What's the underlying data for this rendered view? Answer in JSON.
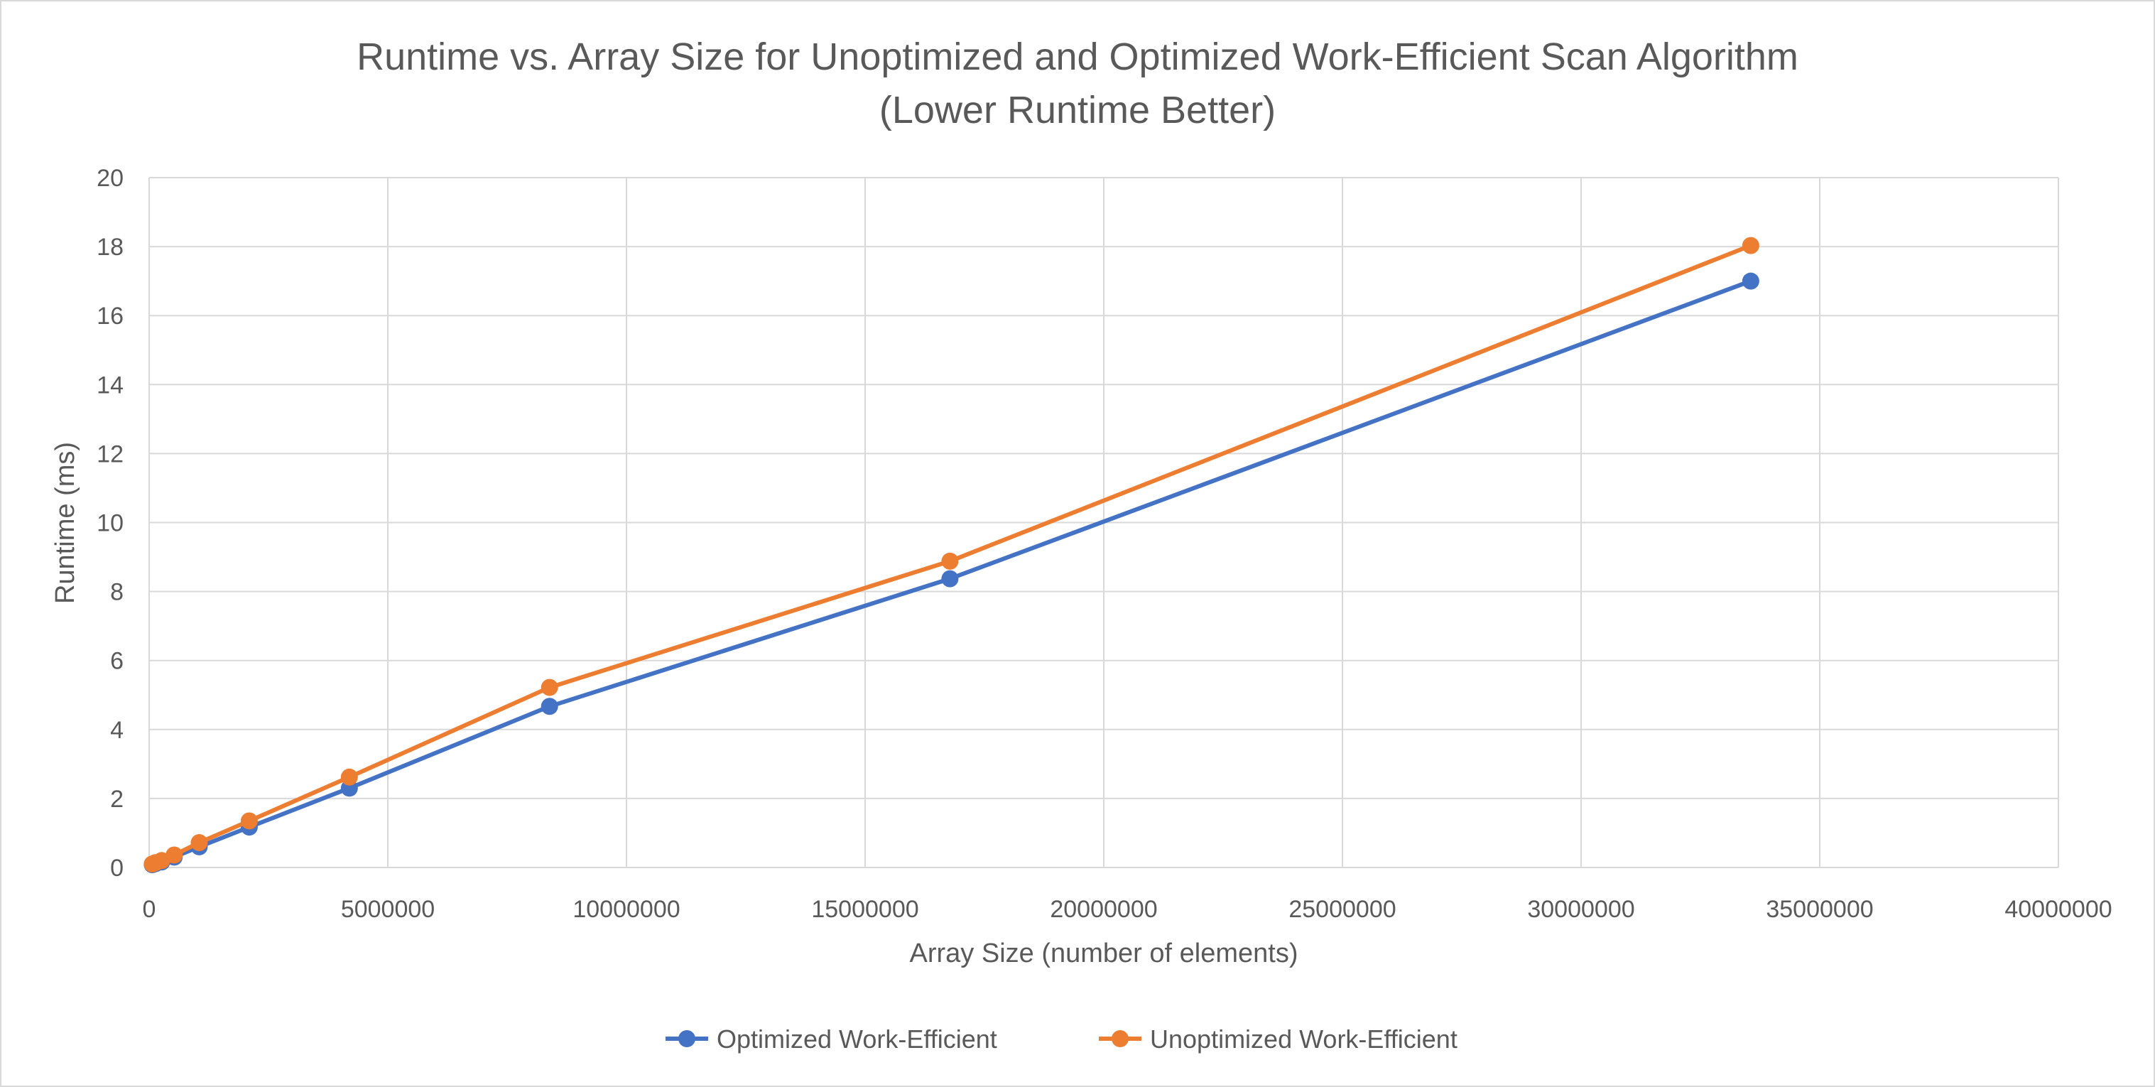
{
  "chart_data": {
    "type": "line",
    "title": "Runtime vs. Array Size for Unoptimized and Optimized Work-Efficient Scan Algorithm",
    "subtitle": "(Lower Runtime Better)",
    "xlabel": "Array Size (number of elements)",
    "ylabel": "Runtime (ms)",
    "xlim": [
      0,
      40000000
    ],
    "ylim": [
      0,
      20
    ],
    "xticks": [
      0,
      5000000,
      10000000,
      15000000,
      20000000,
      25000000,
      30000000,
      35000000,
      40000000
    ],
    "xtick_labels": [
      "0",
      "5000000",
      "10000000",
      "15000000",
      "20000000",
      "25000000",
      "30000000",
      "35000000",
      "40000000"
    ],
    "yticks": [
      0,
      2,
      4,
      6,
      8,
      10,
      12,
      14,
      16,
      18,
      20
    ],
    "ytick_labels": [
      "0",
      "2",
      "4",
      "6",
      "8",
      "10",
      "12",
      "14",
      "16",
      "18",
      "20"
    ],
    "grid": true,
    "legend_position": "bottom",
    "x": [
      65536,
      131072,
      262144,
      524288,
      1048576,
      2097152,
      4194304,
      8388608,
      16777216,
      33554432
    ],
    "series": [
      {
        "name": "Optimized Work-Efficient",
        "color": "#4472c4",
        "values": [
          0.08,
          0.11,
          0.16,
          0.3,
          0.6,
          1.17,
          2.3,
          4.67,
          8.37,
          17.0
        ]
      },
      {
        "name": "Unoptimized Work-Efficient",
        "color": "#ed7d31",
        "values": [
          0.1,
          0.14,
          0.2,
          0.36,
          0.72,
          1.35,
          2.62,
          5.22,
          8.88,
          18.03
        ]
      }
    ]
  }
}
